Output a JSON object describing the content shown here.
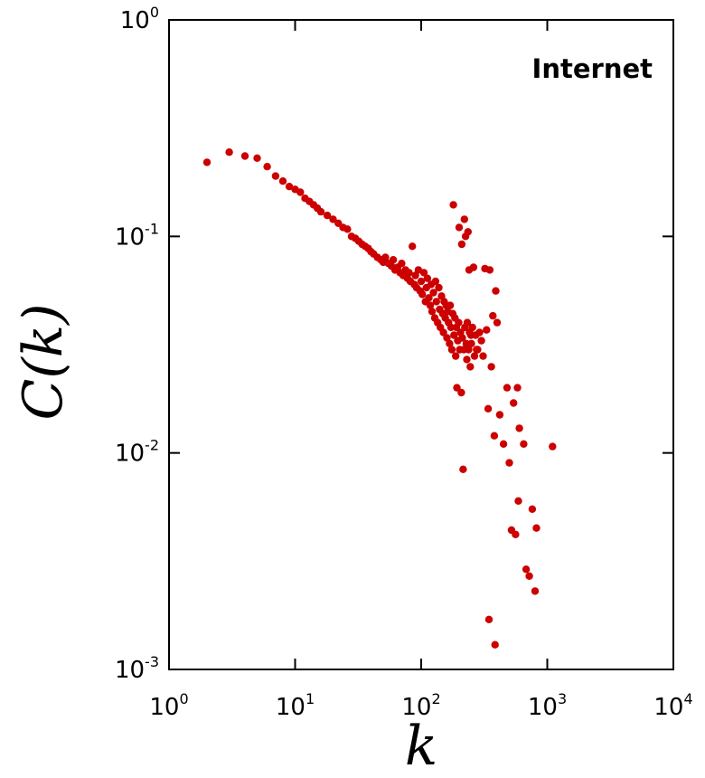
{
  "chart_data": {
    "type": "scatter",
    "title": "",
    "annotation": "Internet",
    "xlabel": "k",
    "ylabel": "C(k)",
    "xscale": "log",
    "yscale": "log",
    "xlim": [
      1,
      10000
    ],
    "ylim": [
      0.001,
      1
    ],
    "grid": false,
    "marker_color": "#cc0000",
    "x_ticks": [
      {
        "base": "10",
        "exp": "0"
      },
      {
        "base": "10",
        "exp": "1"
      },
      {
        "base": "10",
        "exp": "2"
      },
      {
        "base": "10",
        "exp": "3"
      },
      {
        "base": "10",
        "exp": "4"
      }
    ],
    "y_ticks": [
      {
        "base": "10",
        "exp": "-3"
      },
      {
        "base": "10",
        "exp": "-2"
      },
      {
        "base": "10",
        "exp": "-1"
      },
      {
        "base": "10",
        "exp": "0"
      }
    ],
    "points": [
      [
        2,
        0.22
      ],
      [
        3,
        0.245
      ],
      [
        4,
        0.235
      ],
      [
        5,
        0.23
      ],
      [
        6,
        0.21
      ],
      [
        7,
        0.19
      ],
      [
        8,
        0.18
      ],
      [
        9,
        0.17
      ],
      [
        10,
        0.165
      ],
      [
        11,
        0.16
      ],
      [
        12,
        0.15
      ],
      [
        13,
        0.145
      ],
      [
        14,
        0.14
      ],
      [
        15,
        0.135
      ],
      [
        16,
        0.13
      ],
      [
        18,
        0.125
      ],
      [
        20,
        0.12
      ],
      [
        22,
        0.115
      ],
      [
        24,
        0.11
      ],
      [
        26,
        0.108
      ],
      [
        28,
        0.1
      ],
      [
        30,
        0.098
      ],
      [
        32,
        0.095
      ],
      [
        34,
        0.092
      ],
      [
        36,
        0.09
      ],
      [
        38,
        0.088
      ],
      [
        40,
        0.085
      ],
      [
        42,
        0.083
      ],
      [
        45,
        0.08
      ],
      [
        48,
        0.078
      ],
      [
        50,
        0.076
      ],
      [
        52,
        0.08
      ],
      [
        55,
        0.075
      ],
      [
        58,
        0.073
      ],
      [
        60,
        0.078
      ],
      [
        62,
        0.07
      ],
      [
        65,
        0.072
      ],
      [
        68,
        0.068
      ],
      [
        70,
        0.075
      ],
      [
        72,
        0.066
      ],
      [
        75,
        0.07
      ],
      [
        78,
        0.064
      ],
      [
        80,
        0.068
      ],
      [
        82,
        0.062
      ],
      [
        85,
        0.09
      ],
      [
        88,
        0.06
      ],
      [
        90,
        0.066
      ],
      [
        92,
        0.058
      ],
      [
        95,
        0.07
      ],
      [
        98,
        0.056
      ],
      [
        100,
        0.062
      ],
      [
        102,
        0.054
      ],
      [
        105,
        0.068
      ],
      [
        108,
        0.05
      ],
      [
        110,
        0.058
      ],
      [
        112,
        0.064
      ],
      [
        115,
        0.052
      ],
      [
        118,
        0.048
      ],
      [
        120,
        0.06
      ],
      [
        122,
        0.045
      ],
      [
        125,
        0.055
      ],
      [
        128,
        0.042
      ],
      [
        130,
        0.062
      ],
      [
        132,
        0.05
      ],
      [
        135,
        0.04
      ],
      [
        138,
        0.058
      ],
      [
        140,
        0.046
      ],
      [
        142,
        0.038
      ],
      [
        145,
        0.053
      ],
      [
        148,
        0.044
      ],
      [
        150,
        0.036
      ],
      [
        152,
        0.05
      ],
      [
        155,
        0.042
      ],
      [
        158,
        0.048
      ],
      [
        160,
        0.034
      ],
      [
        162,
        0.045
      ],
      [
        165,
        0.04
      ],
      [
        168,
        0.032
      ],
      [
        170,
        0.048
      ],
      [
        172,
        0.038
      ],
      [
        175,
        0.03
      ],
      [
        178,
        0.044
      ],
      [
        180,
        0.14
      ],
      [
        182,
        0.035
      ],
      [
        185,
        0.042
      ],
      [
        188,
        0.028
      ],
      [
        190,
        0.038
      ],
      [
        192,
        0.02
      ],
      [
        195,
        0.033
      ],
      [
        198,
        0.04
      ],
      [
        200,
        0.11
      ],
      [
        202,
        0.03
      ],
      [
        205,
        0.036
      ],
      [
        208,
        0.019
      ],
      [
        210,
        0.092
      ],
      [
        212,
        0.034
      ],
      [
        215,
        0.0084
      ],
      [
        218,
        0.03
      ],
      [
        220,
        0.12
      ],
      [
        222,
        0.038
      ],
      [
        225,
        0.1
      ],
      [
        228,
        0.032
      ],
      [
        230,
        0.027
      ],
      [
        232,
        0.04
      ],
      [
        235,
        0.105
      ],
      [
        238,
        0.03
      ],
      [
        240,
        0.07
      ],
      [
        242,
        0.036
      ],
      [
        245,
        0.025
      ],
      [
        248,
        0.035
      ],
      [
        250,
        0.032
      ],
      [
        255,
        0.038
      ],
      [
        260,
        0.072
      ],
      [
        265,
        0.028
      ],
      [
        270,
        0.035
      ],
      [
        275,
        0.03
      ],
      [
        280,
        0.03
      ],
      [
        290,
        0.036
      ],
      [
        300,
        0.033
      ],
      [
        310,
        0.028
      ],
      [
        320,
        0.071
      ],
      [
        330,
        0.037
      ],
      [
        340,
        0.016
      ],
      [
        345,
        0.0017
      ],
      [
        350,
        0.07
      ],
      [
        360,
        0.025
      ],
      [
        370,
        0.043
      ],
      [
        380,
        0.012
      ],
      [
        385,
        0.0013
      ],
      [
        390,
        0.056
      ],
      [
        400,
        0.04
      ],
      [
        420,
        0.015
      ],
      [
        450,
        0.011
      ],
      [
        480,
        0.02
      ],
      [
        500,
        0.009
      ],
      [
        520,
        0.0044
      ],
      [
        540,
        0.017
      ],
      [
        560,
        0.0042
      ],
      [
        580,
        0.02
      ],
      [
        590,
        0.006
      ],
      [
        600,
        0.013
      ],
      [
        650,
        0.011
      ],
      [
        680,
        0.0029
      ],
      [
        720,
        0.0027
      ],
      [
        760,
        0.0055
      ],
      [
        800,
        0.0023
      ],
      [
        820,
        0.0045
      ],
      [
        1100,
        0.0107
      ]
    ]
  }
}
